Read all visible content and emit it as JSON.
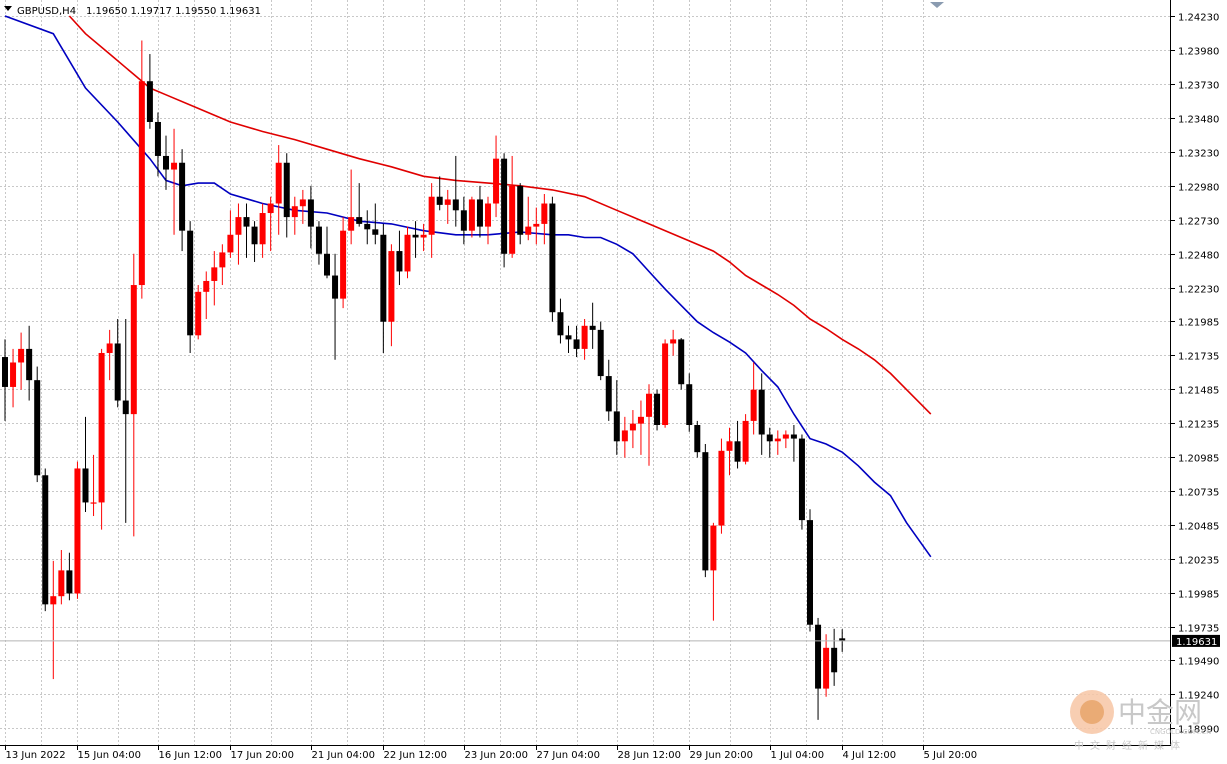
{
  "header": {
    "symbol_timeframe": "GBPUSD,H4",
    "ohlc": "1.19650 1.19717 1.19550 1.19631"
  },
  "watermark": {
    "logo_text": "中金网",
    "domain_text": "CNGOLD.COM.CN",
    "tagline": "中文财经新媒体"
  },
  "colors": {
    "bull": "#ff0000",
    "bear": "#000000",
    "ma_fast": "#0000c0",
    "ma_slow": "#e00000",
    "grid": "#c8c8c8",
    "background": "#ffffff"
  },
  "chart_data": {
    "type": "candlestick",
    "y_axis": {
      "min": 1.1899,
      "max": 1.2423,
      "ticks": [
        "1.24230",
        "1.23980",
        "1.23730",
        "1.23480",
        "1.23230",
        "1.22980",
        "1.22730",
        "1.22480",
        "1.22230",
        "1.21985",
        "1.21735",
        "1.21485",
        "1.21235",
        "1.20985",
        "1.20735",
        "1.20485",
        "1.20235",
        "1.19985",
        "1.19735",
        "1.19490",
        "1.19240",
        "1.18990"
      ]
    },
    "x_axis": {
      "tick_labels": [
        "13 Jun 2022",
        "15 Jun 04:00",
        "16 Jun 12:00",
        "17 Jun 20:00",
        "21 Jun 04:00",
        "22 Jun 12:00",
        "23 Jun 20:00",
        "27 Jun 04:00",
        "28 Jun 12:00",
        "29 Jun 20:00",
        "1 Jul 04:00",
        "4 Jul 12:00",
        "5 Jul 20:00"
      ],
      "tick_index": [
        0,
        9,
        19,
        28,
        38,
        47,
        57,
        66,
        76,
        85,
        95,
        104,
        114
      ]
    },
    "current_price": "1.19631",
    "current_value": 1.19631,
    "grid": true,
    "candles": [
      [
        1.2172,
        1.2185,
        1.2125,
        1.215
      ],
      [
        1.215,
        1.2178,
        1.2135,
        1.2168
      ],
      [
        1.2168,
        1.219,
        1.2148,
        1.2178
      ],
      [
        1.2178,
        1.2195,
        1.214,
        1.2155
      ],
      [
        1.2155,
        1.2165,
        1.208,
        1.2085
      ],
      [
        1.2085,
        1.209,
        1.1985,
        1.199
      ],
      [
        1.199,
        1.2022,
        1.1935,
        1.1996
      ],
      [
        1.1996,
        1.203,
        1.199,
        1.2015
      ],
      [
        1.2015,
        1.2028,
        1.1993,
        1.1998
      ],
      [
        1.1998,
        1.2095,
        1.1994,
        1.209
      ],
      [
        1.209,
        1.2128,
        1.2058,
        1.2065
      ],
      [
        1.2065,
        1.21,
        1.2055,
        1.2065
      ],
      [
        1.2065,
        1.2178,
        1.2045,
        1.2175
      ],
      [
        1.2175,
        1.2192,
        1.2155,
        1.2182
      ],
      [
        1.2182,
        1.22,
        1.2135,
        1.214
      ],
      [
        1.214,
        1.22,
        1.205,
        1.213
      ],
      [
        1.213,
        1.2248,
        1.204,
        1.2225
      ],
      [
        1.2225,
        1.2405,
        1.2215,
        1.2375
      ],
      [
        1.2375,
        1.2395,
        1.234,
        1.2345
      ],
      [
        1.2345,
        1.2352,
        1.2305,
        1.232
      ],
      [
        1.232,
        1.2335,
        1.2295,
        1.231
      ],
      [
        1.231,
        1.234,
        1.2262,
        1.2315
      ],
      [
        1.2315,
        1.2325,
        1.225,
        1.2265
      ],
      [
        1.2265,
        1.2272,
        1.2175,
        1.2188
      ],
      [
        1.2188,
        1.2225,
        1.2185,
        1.222
      ],
      [
        1.222,
        1.2235,
        1.22,
        1.2228
      ],
      [
        1.2228,
        1.225,
        1.221,
        1.2238
      ],
      [
        1.2238,
        1.2255,
        1.2225,
        1.2249
      ],
      [
        1.2249,
        1.228,
        1.2245,
        1.2262
      ],
      [
        1.2262,
        1.2285,
        1.224,
        1.2275
      ],
      [
        1.2275,
        1.2285,
        1.2245,
        1.2268
      ],
      [
        1.2268,
        1.2272,
        1.2242,
        1.2255
      ],
      [
        1.2255,
        1.2285,
        1.2245,
        1.2278
      ],
      [
        1.2278,
        1.229,
        1.225,
        1.2285
      ],
      [
        1.2285,
        1.2328,
        1.2262,
        1.2315
      ],
      [
        1.2315,
        1.2322,
        1.226,
        1.2275
      ],
      [
        1.2275,
        1.229,
        1.2262,
        1.2283
      ],
      [
        1.2283,
        1.2295,
        1.227,
        1.2288
      ],
      [
        1.2288,
        1.2298,
        1.2252,
        1.2268
      ],
      [
        1.2268,
        1.2272,
        1.224,
        1.2248
      ],
      [
        1.2248,
        1.2268,
        1.223,
        1.2232
      ],
      [
        1.2232,
        1.2248,
        1.217,
        1.2215
      ],
      [
        1.2215,
        1.2275,
        1.2208,
        1.2265
      ],
      [
        1.2265,
        1.231,
        1.2255,
        1.2275
      ],
      [
        1.2275,
        1.23,
        1.2268,
        1.227
      ],
      [
        1.227,
        1.228,
        1.2255,
        1.2266
      ],
      [
        1.2266,
        1.2285,
        1.2255,
        1.2262
      ],
      [
        1.2262,
        1.227,
        1.2175,
        1.2198
      ],
      [
        1.2198,
        1.2255,
        1.218,
        1.225
      ],
      [
        1.225,
        1.2265,
        1.2225,
        1.2235
      ],
      [
        1.2235,
        1.2268,
        1.223,
        1.2262
      ],
      [
        1.2262,
        1.2272,
        1.2245,
        1.226
      ],
      [
        1.226,
        1.227,
        1.225,
        1.2262
      ],
      [
        1.2262,
        1.23,
        1.2245,
        1.229
      ],
      [
        1.229,
        1.2305,
        1.228,
        1.2284
      ],
      [
        1.2284,
        1.2295,
        1.227,
        1.2288
      ],
      [
        1.2288,
        1.232,
        1.2268,
        1.228
      ],
      [
        1.228,
        1.229,
        1.2255,
        1.2265
      ],
      [
        1.2265,
        1.229,
        1.226,
        1.2288
      ],
      [
        1.2288,
        1.2298,
        1.226,
        1.2268
      ],
      [
        1.2268,
        1.229,
        1.2255,
        1.2285
      ],
      [
        1.2285,
        1.2335,
        1.2275,
        1.2318
      ],
      [
        1.2318,
        1.2322,
        1.2238,
        1.2248
      ],
      [
        1.2248,
        1.232,
        1.2245,
        1.2298
      ],
      [
        1.2298,
        1.23,
        1.2255,
        1.2262
      ],
      [
        1.2262,
        1.229,
        1.2258,
        1.2268
      ],
      [
        1.2268,
        1.2282,
        1.2255,
        1.227
      ],
      [
        1.227,
        1.2292,
        1.2255,
        1.2285
      ],
      [
        1.2285,
        1.229,
        1.2198,
        1.2205
      ],
      [
        1.2205,
        1.2215,
        1.2182,
        1.2188
      ],
      [
        1.2188,
        1.2195,
        1.2175,
        1.2185
      ],
      [
        1.2185,
        1.2195,
        1.2172,
        1.2178
      ],
      [
        1.2178,
        1.22,
        1.217,
        1.2195
      ],
      [
        1.2195,
        1.2212,
        1.2178,
        1.2192
      ],
      [
        1.2192,
        1.2198,
        1.2155,
        1.2158
      ],
      [
        1.2158,
        1.217,
        1.2125,
        1.2132
      ],
      [
        1.2132,
        1.2155,
        1.21,
        1.211
      ],
      [
        1.211,
        1.2128,
        1.2098,
        1.2118
      ],
      [
        1.2118,
        1.2133,
        1.2105,
        1.2123
      ],
      [
        1.2123,
        1.214,
        1.21,
        1.2128
      ],
      [
        1.2128,
        1.2152,
        1.2092,
        1.2145
      ],
      [
        1.2145,
        1.2148,
        1.2118,
        1.2122
      ],
      [
        1.2122,
        1.2185,
        1.212,
        1.2182
      ],
      [
        1.2182,
        1.2192,
        1.2173,
        1.2185
      ],
      [
        1.2185,
        1.2186,
        1.2148,
        1.2152
      ],
      [
        1.2152,
        1.216,
        1.2117,
        1.2122
      ],
      [
        1.2122,
        1.2125,
        1.2098,
        1.2102
      ],
      [
        1.2102,
        1.2108,
        1.201,
        1.2015
      ],
      [
        1.2015,
        1.205,
        1.1978,
        1.2048
      ],
      [
        1.2048,
        1.2112,
        1.2042,
        1.2103
      ],
      [
        1.2103,
        1.212,
        1.2085,
        1.211
      ],
      [
        1.211,
        1.2125,
        1.209,
        1.2095
      ],
      [
        1.2095,
        1.213,
        1.2093,
        1.2125
      ],
      [
        1.2125,
        1.2168,
        1.2115,
        1.2148
      ],
      [
        1.2148,
        1.216,
        1.21,
        1.2115
      ],
      [
        1.2115,
        1.212,
        1.2098,
        1.211
      ],
      [
        1.211,
        1.2118,
        1.21,
        1.2112
      ],
      [
        1.2112,
        1.2118,
        1.2105,
        1.2115
      ],
      [
        1.2115,
        1.2122,
        1.2095,
        1.2112
      ],
      [
        1.2112,
        1.2115,
        1.2045,
        1.2052
      ],
      [
        1.2052,
        1.206,
        1.197,
        1.1975
      ],
      [
        1.1975,
        1.198,
        1.1905,
        1.1928
      ],
      [
        1.1928,
        1.1968,
        1.1922,
        1.1958
      ],
      [
        1.1958,
        1.1972,
        1.193,
        1.194
      ],
      [
        1.1965,
        1.19717,
        1.1955,
        1.19631
      ]
    ],
    "ma_fast": [
      [
        0,
        1.2423
      ],
      [
        6,
        1.241
      ],
      [
        10,
        1.237
      ],
      [
        14,
        1.2345
      ],
      [
        18,
        1.2318
      ],
      [
        20,
        1.2302
      ],
      [
        22,
        1.2298
      ],
      [
        24,
        1.23
      ],
      [
        26,
        1.23
      ],
      [
        28,
        1.2292
      ],
      [
        32,
        1.2285
      ],
      [
        36,
        1.228
      ],
      [
        40,
        1.2278
      ],
      [
        44,
        1.2272
      ],
      [
        48,
        1.227
      ],
      [
        52,
        1.2265
      ],
      [
        56,
        1.2262
      ],
      [
        60,
        1.2262
      ],
      [
        64,
        1.2264
      ],
      [
        68,
        1.2262
      ],
      [
        70,
        1.2262
      ],
      [
        72,
        1.226
      ],
      [
        74,
        1.226
      ],
      [
        76,
        1.2255
      ],
      [
        78,
        1.2248
      ],
      [
        80,
        1.2235
      ],
      [
        82,
        1.2222
      ],
      [
        84,
        1.221
      ],
      [
        86,
        1.2198
      ],
      [
        88,
        1.219
      ],
      [
        90,
        1.2183
      ],
      [
        92,
        1.2175
      ],
      [
        94,
        1.2162
      ],
      [
        96,
        1.215
      ],
      [
        98,
        1.213
      ],
      [
        100,
        1.2112
      ],
      [
        102,
        1.2108
      ],
      [
        104,
        1.2102
      ],
      [
        106,
        1.2092
      ],
      [
        108,
        1.208
      ],
      [
        110,
        1.207
      ],
      [
        112,
        1.205
      ],
      [
        115,
        1.2025
      ]
    ],
    "ma_slow": [
      [
        8,
        1.2423
      ],
      [
        10,
        1.241
      ],
      [
        13,
        1.2395
      ],
      [
        16,
        1.238
      ],
      [
        18,
        1.237
      ],
      [
        20,
        1.2365
      ],
      [
        24,
        1.2355
      ],
      [
        28,
        1.2345
      ],
      [
        32,
        1.2338
      ],
      [
        36,
        1.2332
      ],
      [
        40,
        1.2325
      ],
      [
        44,
        1.2318
      ],
      [
        48,
        1.2312
      ],
      [
        52,
        1.2305
      ],
      [
        56,
        1.2302
      ],
      [
        60,
        1.23
      ],
      [
        64,
        1.2298
      ],
      [
        68,
        1.2295
      ],
      [
        72,
        1.229
      ],
      [
        76,
        1.228
      ],
      [
        80,
        1.227
      ],
      [
        84,
        1.226
      ],
      [
        88,
        1.225
      ],
      [
        90,
        1.2242
      ],
      [
        92,
        1.2232
      ],
      [
        94,
        1.2225
      ],
      [
        96,
        1.2218
      ],
      [
        98,
        1.221
      ],
      [
        100,
        1.22
      ],
      [
        102,
        1.2193
      ],
      [
        104,
        1.2185
      ],
      [
        106,
        1.2178
      ],
      [
        108,
        1.217
      ],
      [
        110,
        1.216
      ],
      [
        112,
        1.2148
      ],
      [
        115,
        1.213
      ]
    ]
  }
}
